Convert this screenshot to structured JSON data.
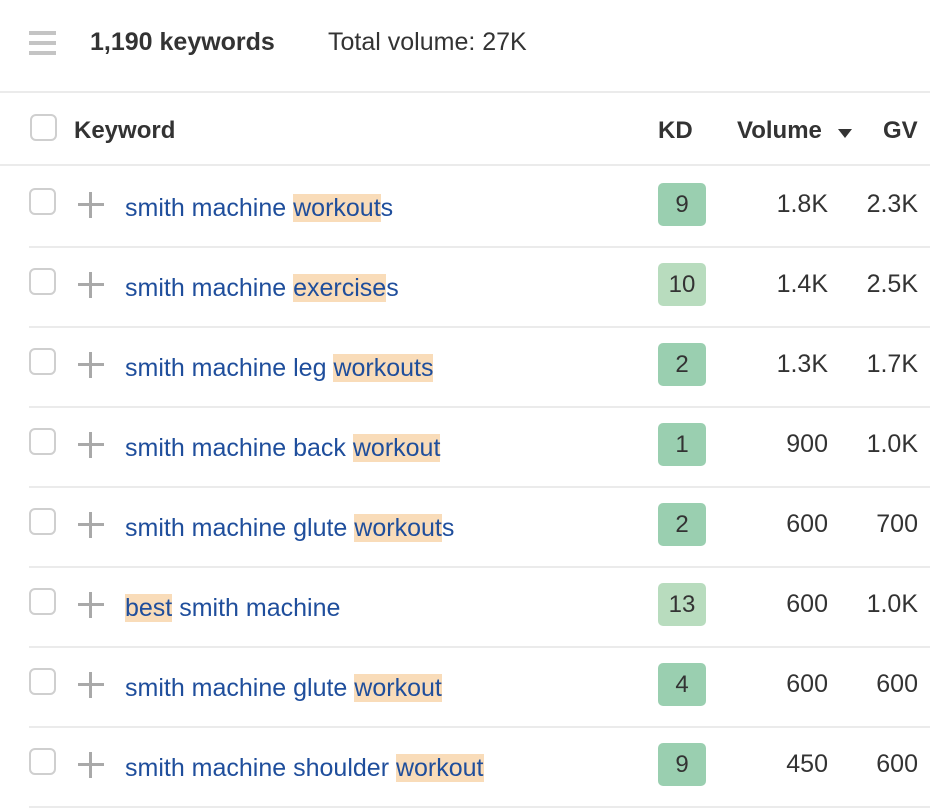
{
  "topbar": {
    "menu_icon": "hamburger-icon",
    "keyword_count": "1,190 keywords",
    "total_volume": "Total volume: 27K"
  },
  "table": {
    "columns": {
      "keyword": "Keyword",
      "kd": "KD",
      "volume": "Volume",
      "gv": "GV"
    },
    "sort": {
      "column": "Volume",
      "direction": "desc",
      "icon": "sort-down-icon"
    },
    "colors": {
      "kd_dark": "#9acfb0",
      "kd_light": "#b8dcbe",
      "highlight": "#f9dcb9",
      "link": "#1f4e9c"
    },
    "rows": [
      {
        "pre": "smith machine ",
        "hl": "workout",
        "post": "s",
        "kd": "9",
        "kd_shade": "dark",
        "volume": "1.8K",
        "gv": "2.3K"
      },
      {
        "pre": "smith machine ",
        "hl": "exercise",
        "post": "s",
        "kd": "10",
        "kd_shade": "light",
        "volume": "1.4K",
        "gv": "2.5K"
      },
      {
        "pre": "smith machine leg ",
        "hl": "workouts",
        "post": "",
        "kd": "2",
        "kd_shade": "dark",
        "volume": "1.3K",
        "gv": "1.7K"
      },
      {
        "pre": "smith machine back ",
        "hl": "workout",
        "post": "",
        "kd": "1",
        "kd_shade": "dark",
        "volume": "900",
        "gv": "1.0K"
      },
      {
        "pre": "smith machine glute ",
        "hl": "workout",
        "post": "s",
        "kd": "2",
        "kd_shade": "dark",
        "volume": "600",
        "gv": "700"
      },
      {
        "pre": "",
        "hl": "best",
        "post": " smith machine",
        "kd": "13",
        "kd_shade": "light",
        "volume": "600",
        "gv": "1.0K"
      },
      {
        "pre": "smith machine glute ",
        "hl": "workout",
        "post": "",
        "kd": "4",
        "kd_shade": "dark",
        "volume": "600",
        "gv": "600"
      },
      {
        "pre": "smith machine shoulder ",
        "hl": "workout",
        "post": "",
        "kd": "9",
        "kd_shade": "dark",
        "volume": "450",
        "gv": "600"
      }
    ]
  }
}
